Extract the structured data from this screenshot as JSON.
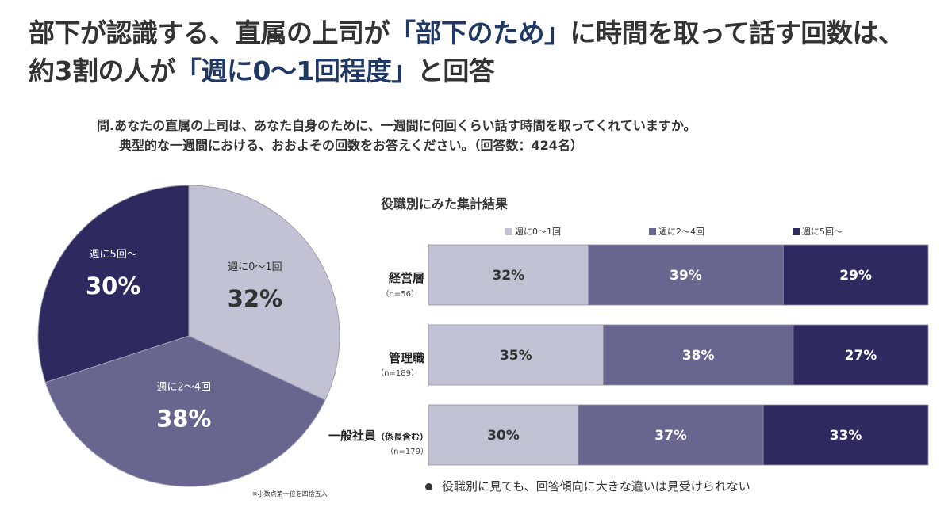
{
  "header": {
    "title_line1_pre": "部下が認識する、直属の上司が",
    "title_line1_hl": "「部下のため」",
    "title_line1_post": "に時間を取って話す回数は、",
    "title_line2_pre": "約3割の人が",
    "title_line2_hl": "「週に0〜1回程度」",
    "title_line2_post": "と回答"
  },
  "question": {
    "line1": "問.あなたの直属の上司は、あなた自身のために、一週間に何回くらい話す時間を取ってくれていますか。",
    "line2": "典型的な一週間における、おおよその回数をお答えください。（回答数：424名）"
  },
  "footnote": "※小数点第一位を四捨五入",
  "bottom_note": "役職別に見ても、回答傾向に大きな違いは見受けられない",
  "colors": {
    "light": "#c2c2d4",
    "mid": "#68658f",
    "dark": "#2e2a5f",
    "title_highlight": "#1f3864"
  },
  "chart_data": [
    {
      "type": "pie",
      "title": "",
      "slices": [
        {
          "label": "週に0〜1回",
          "value": 32,
          "display": "32%"
        },
        {
          "label": "週に2〜4回",
          "value": 38,
          "display": "38%"
        },
        {
          "label": "週に5回〜",
          "value": 30,
          "display": "30%"
        }
      ]
    },
    {
      "type": "bar",
      "orientation": "horizontal",
      "stacked": true,
      "title": "役職別にみた集計結果",
      "legend_position": "top",
      "xlim": [
        0,
        100
      ],
      "categories": [
        {
          "label": "経営層",
          "n": "（n=56）"
        },
        {
          "label": "管理職",
          "n": "（n=189）"
        },
        {
          "label": "一般社員",
          "label_suffix": "（係長含む）",
          "n": "（n=179）"
        }
      ],
      "series": [
        {
          "name": "週に0〜1回",
          "values": [
            32,
            35,
            30
          ],
          "labels": [
            "32%",
            "35%",
            "30%"
          ]
        },
        {
          "name": "週に2〜4回",
          "values": [
            39,
            38,
            37
          ],
          "labels": [
            "39%",
            "38%",
            "37%"
          ]
        },
        {
          "name": "週に5回〜",
          "values": [
            29,
            27,
            33
          ],
          "labels": [
            "29%",
            "27%",
            "33%"
          ]
        }
      ]
    }
  ]
}
